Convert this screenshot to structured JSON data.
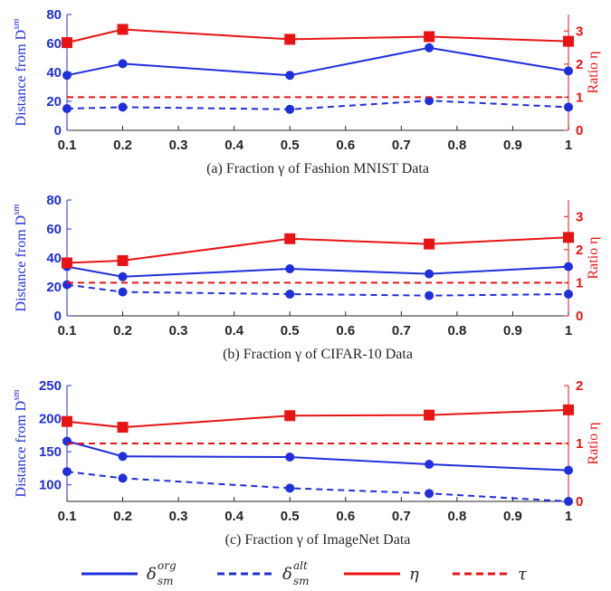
{
  "colors": {
    "blue": "#1f2fdc",
    "red": "#e81414",
    "axis": "#262626"
  },
  "chart_data": [
    {
      "type": "line",
      "caption": "(a) Fraction γ of Fashion MNIST Data",
      "xlabel": "",
      "ylabel": "Distance from D",
      "ylabel_sup": "sm",
      "y2label": "Ratio η",
      "xlim": [
        0.1,
        1
      ],
      "ylim": [
        0,
        80
      ],
      "y2lim": [
        0,
        3.5
      ],
      "xticks": [
        0.1,
        0.2,
        0.3,
        0.4,
        0.5,
        0.6,
        0.7,
        0.8,
        0.9,
        1
      ],
      "xtick_labels": [
        "0.1",
        "0.2",
        "0.3",
        "0.4",
        "0.5",
        "0.6",
        "0.7",
        "0.8",
        "0.9",
        "1"
      ],
      "yticks": [
        0,
        20,
        40,
        60,
        80
      ],
      "ytick_labels": [
        "0",
        "20",
        "40",
        "60",
        "80"
      ],
      "y2ticks": [
        0,
        1,
        2,
        3
      ],
      "y2tick_labels": [
        "0",
        "1",
        "2",
        "3"
      ],
      "x": [
        0.1,
        0.2,
        0.5,
        0.75,
        1
      ],
      "series": [
        {
          "name": "δ_sm^org",
          "axis": "left",
          "style": "solid",
          "color": "blue",
          "marker": "circle",
          "values": [
            38,
            46,
            38,
            57,
            41
          ]
        },
        {
          "name": "δ_sm^alt",
          "axis": "left",
          "style": "dashed",
          "color": "blue",
          "marker": "circle",
          "values": [
            15,
            16,
            14.5,
            20.5,
            16
          ]
        },
        {
          "name": "η",
          "axis": "right",
          "style": "solid",
          "color": "red",
          "marker": "square",
          "values": [
            2.65,
            3.05,
            2.75,
            2.83,
            2.69
          ]
        },
        {
          "name": "τ",
          "axis": "right",
          "style": "dashed",
          "color": "red",
          "marker": "none",
          "values": [
            1,
            1,
            1,
            1,
            1
          ]
        }
      ]
    },
    {
      "type": "line",
      "caption": "(b) Fraction γ of CIFAR-10 Data",
      "xlabel": "",
      "ylabel": "Distance from D",
      "ylabel_sup": "sm",
      "y2label": "Ratio η",
      "xlim": [
        0.1,
        1
      ],
      "ylim": [
        0,
        80
      ],
      "y2lim": [
        0,
        3.5
      ],
      "xticks": [
        0.1,
        0.2,
        0.3,
        0.4,
        0.5,
        0.6,
        0.7,
        0.8,
        0.9,
        1
      ],
      "xtick_labels": [
        "0.1",
        "0.2",
        "0.3",
        "0.4",
        "0.5",
        "0.6",
        "0.7",
        "0.8",
        "0.9",
        "1"
      ],
      "yticks": [
        0,
        20,
        40,
        60,
        80
      ],
      "ytick_labels": [
        "0",
        "20",
        "40",
        "60",
        "80"
      ],
      "y2ticks": [
        0,
        1,
        2,
        3
      ],
      "y2tick_labels": [
        "0",
        "1",
        "2",
        "3"
      ],
      "x": [
        0.1,
        0.2,
        0.5,
        0.75,
        1
      ],
      "series": [
        {
          "name": "δ_sm^org",
          "axis": "left",
          "style": "solid",
          "color": "blue",
          "marker": "circle",
          "values": [
            34,
            27,
            32.5,
            29,
            34
          ]
        },
        {
          "name": "δ_sm^alt",
          "axis": "left",
          "style": "dashed",
          "color": "blue",
          "marker": "circle",
          "values": [
            21.5,
            16.5,
            15,
            14,
            15
          ]
        },
        {
          "name": "η",
          "axis": "right",
          "style": "solid",
          "color": "red",
          "marker": "square",
          "values": [
            1.6,
            1.67,
            2.33,
            2.17,
            2.37
          ]
        },
        {
          "name": "τ",
          "axis": "right",
          "style": "dashed",
          "color": "red",
          "marker": "none",
          "values": [
            1,
            1,
            1,
            1,
            1
          ]
        }
      ]
    },
    {
      "type": "line",
      "caption": "(c) Fraction γ of ImageNet Data",
      "xlabel": "",
      "ylabel": "Distance from D",
      "ylabel_sup": "sm",
      "y2label": "Ratio η",
      "xlim": [
        0.1,
        1
      ],
      "ylim": [
        75,
        250
      ],
      "y2lim": [
        0,
        2
      ],
      "xticks": [
        0.1,
        0.2,
        0.3,
        0.4,
        0.5,
        0.6,
        0.7,
        0.8,
        0.9,
        1
      ],
      "xtick_labels": [
        "0.1",
        "0.2",
        "0.3",
        "0.4",
        "0.5",
        "0.6",
        "0.7",
        "0.8",
        "0.9",
        "1"
      ],
      "yticks": [
        100,
        150,
        200,
        250
      ],
      "ytick_labels": [
        "100",
        "150",
        "200",
        "250"
      ],
      "y2ticks": [
        0,
        1,
        2
      ],
      "y2tick_labels": [
        "0",
        "1",
        "2"
      ],
      "x": [
        0.1,
        0.2,
        0.5,
        0.75,
        1
      ],
      "series": [
        {
          "name": "δ_sm^org",
          "axis": "left",
          "style": "solid",
          "color": "blue",
          "marker": "circle",
          "values": [
            166,
            143,
            142,
            131,
            122
          ]
        },
        {
          "name": "δ_sm^alt",
          "axis": "left",
          "style": "dashed",
          "color": "blue",
          "marker": "circle",
          "values": [
            120,
            110,
            95,
            87,
            75
          ]
        },
        {
          "name": "η",
          "axis": "right",
          "style": "solid",
          "color": "red",
          "marker": "square",
          "values": [
            1.38,
            1.28,
            1.48,
            1.49,
            1.58
          ]
        },
        {
          "name": "τ",
          "axis": "right",
          "style": "dashed",
          "color": "red",
          "marker": "none",
          "values": [
            1,
            1,
            1,
            1,
            1
          ]
        }
      ]
    }
  ],
  "legend": {
    "placement": "bottom",
    "items": [
      {
        "base": "δ",
        "sub": "sm",
        "sup": "org",
        "style": "solid",
        "color": "blue"
      },
      {
        "base": "δ",
        "sub": "sm",
        "sup": "alt",
        "style": "dashed",
        "color": "blue"
      },
      {
        "base": "η",
        "sub": "",
        "sup": "",
        "style": "solid",
        "color": "red"
      },
      {
        "base": "τ",
        "sub": "",
        "sup": "",
        "style": "dashed",
        "color": "red"
      }
    ]
  }
}
